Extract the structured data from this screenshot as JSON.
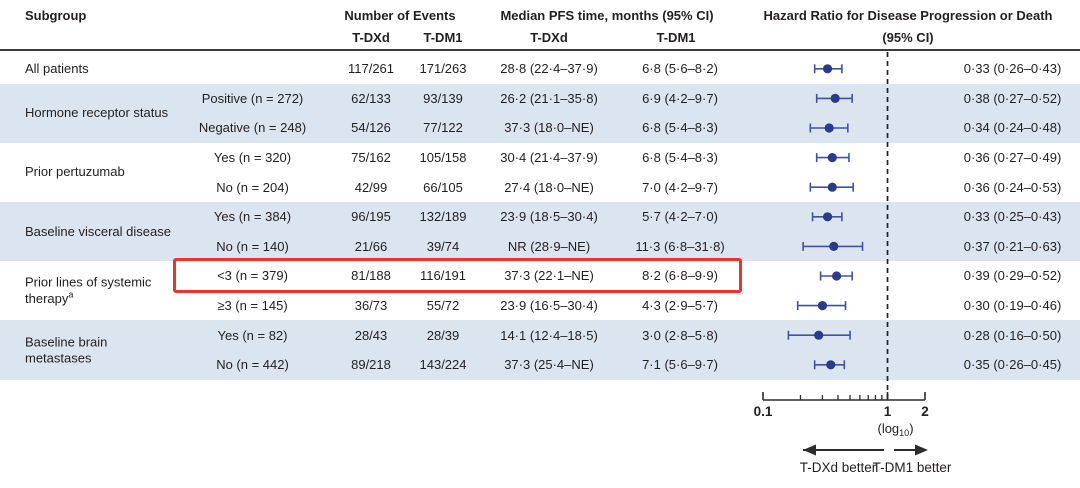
{
  "header": {
    "subgroup": "Subgroup",
    "events_title": "Number of Events",
    "events_tdxd": "T-DXd",
    "events_tdm1": "T-DM1",
    "median_title": "Median PFS time, months (95% CI)",
    "median_tdxd": "T-DXd",
    "median_tdm1": "T-DM1",
    "hr_title_line1": "Hazard Ratio for Disease Progression or Death",
    "hr_title_line2": "(95% CI)"
  },
  "chart_data": {
    "type": "forest",
    "axis": {
      "min": 0.1,
      "max": 2,
      "reference": 1,
      "major_ticks": [
        0.1,
        1,
        2
      ],
      "major_tick_labels": [
        "0.1",
        "1",
        "2"
      ],
      "minor_ticks": [
        0.2,
        0.3,
        0.4,
        0.5,
        0.6,
        0.7,
        0.8,
        0.9
      ],
      "scale_label_prefix": "(log",
      "scale_label_sub": "10",
      "scale_label_suffix": ")"
    },
    "footer": {
      "left_arrow_label": "T-DXd better",
      "right_arrow_label": "T-DM1 better"
    },
    "groups": [
      {
        "label": "All patients",
        "label_sup": "",
        "band": "white",
        "rows": [
          {
            "subgroup": "",
            "events_tdxd": "117/261",
            "events_tdm1": "171/263",
            "median_tdxd": "28·8 (22·4–37·9)",
            "median_tdm1": "6·8 (5·6–8·2)",
            "hr": 0.33,
            "lo": 0.26,
            "hi": 0.43,
            "hr_text": "0·33 (0·26–0·43)"
          }
        ]
      },
      {
        "label": "Hormone receptor status",
        "label_sup": "",
        "band": "blue",
        "rows": [
          {
            "subgroup": "Positive (n = 272)",
            "events_tdxd": "62/133",
            "events_tdm1": "93/139",
            "median_tdxd": "26·2 (21·1–35·8)",
            "median_tdm1": "6·9 (4·2–9·7)",
            "hr": 0.38,
            "lo": 0.27,
            "hi": 0.52,
            "hr_text": "0·38 (0·27–0·52)"
          },
          {
            "subgroup": "Negative (n = 248)",
            "events_tdxd": "54/126",
            "events_tdm1": "77/122",
            "median_tdxd": "37·3 (18·0–NE)",
            "median_tdm1": "6·8 (5·4–8·3)",
            "hr": 0.34,
            "lo": 0.24,
            "hi": 0.48,
            "hr_text": "0·34 (0·24–0·48)"
          }
        ]
      },
      {
        "label": "Prior pertuzumab",
        "label_sup": "",
        "band": "white",
        "rows": [
          {
            "subgroup": "Yes (n = 320)",
            "events_tdxd": "75/162",
            "events_tdm1": "105/158",
            "median_tdxd": "30·4 (21·4–37·9)",
            "median_tdm1": "6·8 (5·4–8·3)",
            "hr": 0.36,
            "lo": 0.27,
            "hi": 0.49,
            "hr_text": "0·36 (0·27–0·49)"
          },
          {
            "subgroup": "No (n = 204)",
            "events_tdxd": "42/99",
            "events_tdm1": "66/105",
            "median_tdxd": "27·4 (18·0–NE)",
            "median_tdm1": "7·0 (4·2–9·7)",
            "hr": 0.36,
            "lo": 0.24,
            "hi": 0.53,
            "hr_text": "0·36 (0·24–0·53)"
          }
        ]
      },
      {
        "label": "Baseline visceral disease",
        "label_sup": "",
        "band": "blue",
        "rows": [
          {
            "subgroup": "Yes (n = 384)",
            "events_tdxd": "96/195",
            "events_tdm1": "132/189",
            "median_tdxd": "23·9 (18·5–30·4)",
            "median_tdm1": "5·7 (4·2–7·0)",
            "hr": 0.33,
            "lo": 0.25,
            "hi": 0.43,
            "hr_text": "0·33 (0·25–0·43)"
          },
          {
            "subgroup": "No (n = 140)",
            "events_tdxd": "21/66",
            "events_tdm1": "39/74",
            "median_tdxd": "NR (28·9–NE)",
            "median_tdm1": "11·3 (6·8–31·8)",
            "hr": 0.37,
            "lo": 0.21,
            "hi": 0.63,
            "hr_text": "0·37 (0·21–0·63)"
          }
        ]
      },
      {
        "label": "Prior lines of systemic therapy",
        "label_sup": "a",
        "band": "white",
        "rows": [
          {
            "subgroup": "<3 (n = 379)",
            "events_tdxd": "81/188",
            "events_tdm1": "116/191",
            "median_tdxd": "37·3 (22·1–NE)",
            "median_tdm1": "8·2 (6·8–9·9)",
            "hr": 0.39,
            "lo": 0.29,
            "hi": 0.52,
            "hr_text": "0·39 (0·29–0·52)"
          },
          {
            "subgroup": "≥3 (n = 145)",
            "events_tdxd": "36/73",
            "events_tdm1": "55/72",
            "median_tdxd": "23·9 (16·5–30·4)",
            "median_tdm1": "4·3 (2·9–5·7)",
            "hr": 0.3,
            "lo": 0.19,
            "hi": 0.46,
            "hr_text": "0·30 (0·19–0·46)"
          }
        ]
      },
      {
        "label": "Baseline brain metastases",
        "label_sup": "",
        "band": "blue",
        "rows": [
          {
            "subgroup": "Yes (n = 82)",
            "events_tdxd": "28/43",
            "events_tdm1": "28/39",
            "median_tdxd": "14·1 (12·4–18·5)",
            "median_tdm1": "3·0 (2·8–5·8)",
            "hr": 0.28,
            "lo": 0.16,
            "hi": 0.5,
            "hr_text": "0·28 (0·16–0·50)"
          },
          {
            "subgroup": "No (n = 442)",
            "events_tdxd": "89/218",
            "events_tdm1": "143/224",
            "median_tdxd": "37·3 (25·4–NE)",
            "median_tdm1": "7·1 (5·6–9·7)",
            "hr": 0.35,
            "lo": 0.26,
            "hi": 0.45,
            "hr_text": "0·35 (0·26–0·45)"
          }
        ]
      }
    ],
    "highlight": {
      "group_index": 4,
      "row_index": 0,
      "color": "#e8362d"
    }
  },
  "colors": {
    "band_blue": "#dbe5f0",
    "marker_navy": "#2b3a8c",
    "whisker_blue": "#3f51a3",
    "highlight_red": "#e8362d",
    "text": "#231f20"
  }
}
